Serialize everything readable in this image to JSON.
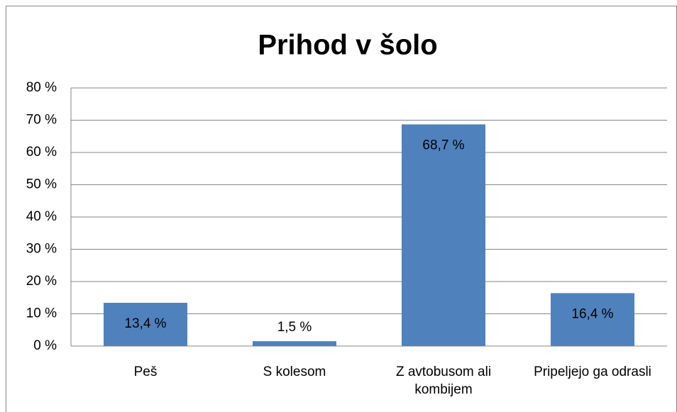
{
  "chart_data": {
    "type": "bar",
    "title": "Prihod v šolo",
    "categories": [
      "Peš",
      "S kolesom",
      "Z avtobusom ali kombijem",
      "Pripeljejo ga odrasli"
    ],
    "values": [
      13.4,
      1.5,
      68.7,
      16.4
    ],
    "value_labels": [
      "13,4 %",
      "1,5 %",
      "68,7 %",
      "16,4 %"
    ],
    "color": "#4f81bd",
    "ylim": [
      0,
      80
    ],
    "yticks": [
      {
        "value": 0,
        "label": "0 %"
      },
      {
        "value": 10,
        "label": "10 %"
      },
      {
        "value": 20,
        "label": "20 %"
      },
      {
        "value": 30,
        "label": "30 %"
      },
      {
        "value": 40,
        "label": "40 %"
      },
      {
        "value": 50,
        "label": "50 %"
      },
      {
        "value": 60,
        "label": "60 %"
      },
      {
        "value": 70,
        "label": "70 %"
      },
      {
        "value": 80,
        "label": "80 %"
      }
    ],
    "grid": true
  }
}
